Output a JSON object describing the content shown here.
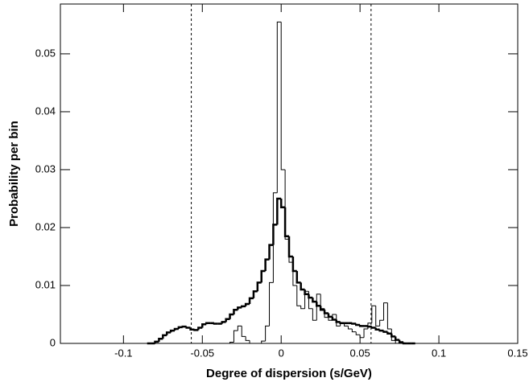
{
  "chart_data": {
    "type": "histogram",
    "x_label": "Degree of dispersion (s/GeV)",
    "y_label": "Probability per bin",
    "xlim": [
      -0.14,
      0.15
    ],
    "ylim": [
      0,
      0.0586
    ],
    "xticks": [
      -0.1,
      -0.05,
      0,
      0.05,
      0.1,
      0.15
    ],
    "yticks": [
      0,
      0.01,
      0.02,
      0.03,
      0.04,
      0.05
    ],
    "vlines": [
      -0.057,
      0.057
    ],
    "bins": [
      -0.085,
      -0.0825,
      -0.08,
      -0.0775,
      -0.075,
      -0.0725,
      -0.07,
      -0.0675,
      -0.065,
      -0.0625,
      -0.06,
      -0.0575,
      -0.055,
      -0.0525,
      -0.05,
      -0.0475,
      -0.045,
      -0.0425,
      -0.04,
      -0.0375,
      -0.035,
      -0.0325,
      -0.03,
      -0.0275,
      -0.025,
      -0.0225,
      -0.02,
      -0.0175,
      -0.015,
      -0.0125,
      -0.01,
      -0.0075,
      -0.005,
      -0.0025,
      0,
      0.0025,
      0.005,
      0.0075,
      0.01,
      0.0125,
      0.015,
      0.0175,
      0.02,
      0.0225,
      0.025,
      0.0275,
      0.03,
      0.0325,
      0.035,
      0.0375,
      0.04,
      0.0425,
      0.045,
      0.0475,
      0.05,
      0.0525,
      0.055,
      0.0575,
      0.06,
      0.0625,
      0.065,
      0.0675,
      0.07,
      0.0725,
      0.075,
      0.0775,
      0.08,
      0.0825,
      0.085
    ],
    "series": [
      {
        "color": "#000000",
        "width": 1,
        "values": [
          0,
          0,
          0,
          0,
          0,
          0,
          0,
          0,
          0,
          0,
          0,
          0,
          0,
          0,
          0,
          0,
          0,
          0,
          0,
          0,
          0,
          0.0002,
          0.0022,
          0.003,
          0.0012,
          0.0005,
          0,
          0,
          0,
          0.0004,
          0.003,
          0.0105,
          0.026,
          0.0555,
          0.03,
          0.018,
          0.014,
          0.01,
          0.0065,
          0.006,
          0.009,
          0.006,
          0.004,
          0.0085,
          0.006,
          0.0045,
          0.004,
          0.005,
          0.003,
          0.0035,
          0.003,
          0.0025,
          0.002,
          0.0015,
          0.001,
          0.0025,
          0.0035,
          0.0065,
          0.003,
          0.004,
          0.007,
          0.0025,
          0.0005,
          0,
          0,
          0,
          0,
          0
        ]
      },
      {
        "color": "#000000",
        "width": 2.5,
        "values": [
          0,
          0,
          0.0003,
          0.0008,
          0.0014,
          0.0019,
          0.0022,
          0.0025,
          0.0028,
          0.0029,
          0.0027,
          0.0024,
          0.0023,
          0.0027,
          0.0033,
          0.0035,
          0.0035,
          0.0034,
          0.0034,
          0.0037,
          0.0042,
          0.005,
          0.0058,
          0.0062,
          0.0064,
          0.0068,
          0.0078,
          0.009,
          0.0105,
          0.0125,
          0.0145,
          0.017,
          0.0205,
          0.025,
          0.0235,
          0.0185,
          0.015,
          0.0125,
          0.0105,
          0.0093,
          0.0085,
          0.0079,
          0.0072,
          0.0065,
          0.0058,
          0.0052,
          0.0046,
          0.0041,
          0.0037,
          0.0035,
          0.0035,
          0.0035,
          0.0034,
          0.0032,
          0.003,
          0.003,
          0.0029,
          0.0027,
          0.0024,
          0.0022,
          0.002,
          0.0017,
          0.0012,
          0.0006,
          0.0002,
          0,
          0,
          0
        ]
      }
    ]
  }
}
